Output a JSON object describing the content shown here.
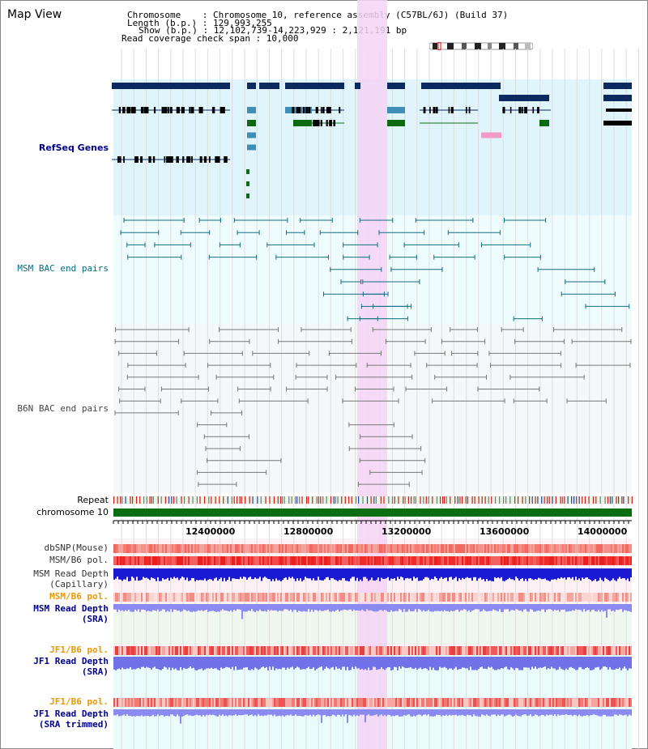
{
  "title": "Map View",
  "info": {
    "chromosome": "Chromosome    : Chromosome 10, reference assembly (C57BL/6J) (Build 37)",
    "length": "Length (b.p.) : 129,993,255",
    "show": "Show (b.p.) : 12,102,739-14,223,929 : 2,121,191 bp",
    "coverage": "Read coverage check span : 10,000"
  },
  "tracks": {
    "refseq": "RefSeq Genes",
    "msm_bac": "MSM BAC end pairs",
    "b6n_bac": "B6N BAC end pairs",
    "repeat": "Repeat",
    "chromosome": "chromosome 10",
    "dbsnp": "dbSNP(Mouse)",
    "msm_b6_pol": "MSM/B6 pol.",
    "msm_depth_cap_1": "MSM Read Depth",
    "msm_depth_cap_2": "(Capillary)",
    "msm_b6_pol2": "MSM/B6 pol.",
    "msm_depth_sra_1": "MSM Read Depth",
    "msm_depth_sra_2": "(SRA)",
    "jf1_b6_pol": "JF1/B6 pol.",
    "jf1_depth_sra_1": "JF1 Read Depth",
    "jf1_depth_sra_2": "(SRA)",
    "jf1_b6_pol2": "JF1/B6 pol.",
    "jf1_depth_trim_1": "JF1 Read Depth",
    "jf1_depth_trim_2": "(SRA trimmed)"
  },
  "axis_ticks": [
    "12400000",
    "12800000",
    "13200000",
    "13600000",
    "14000000"
  ],
  "colors": {
    "refseq_bg": "#dff4fb",
    "msm_bg": "#eefcfd",
    "b6n_bg": "#f6f7f9",
    "highlight": "#f5d3f5",
    "gene_dark": "#0c2a5f",
    "gene_mid": "#3f8eb7",
    "gene_green": "#0c6b12",
    "chrom_bar": "#0c6e12",
    "msm_pair": "#136e85",
    "b6n_pair": "#777777"
  }
}
